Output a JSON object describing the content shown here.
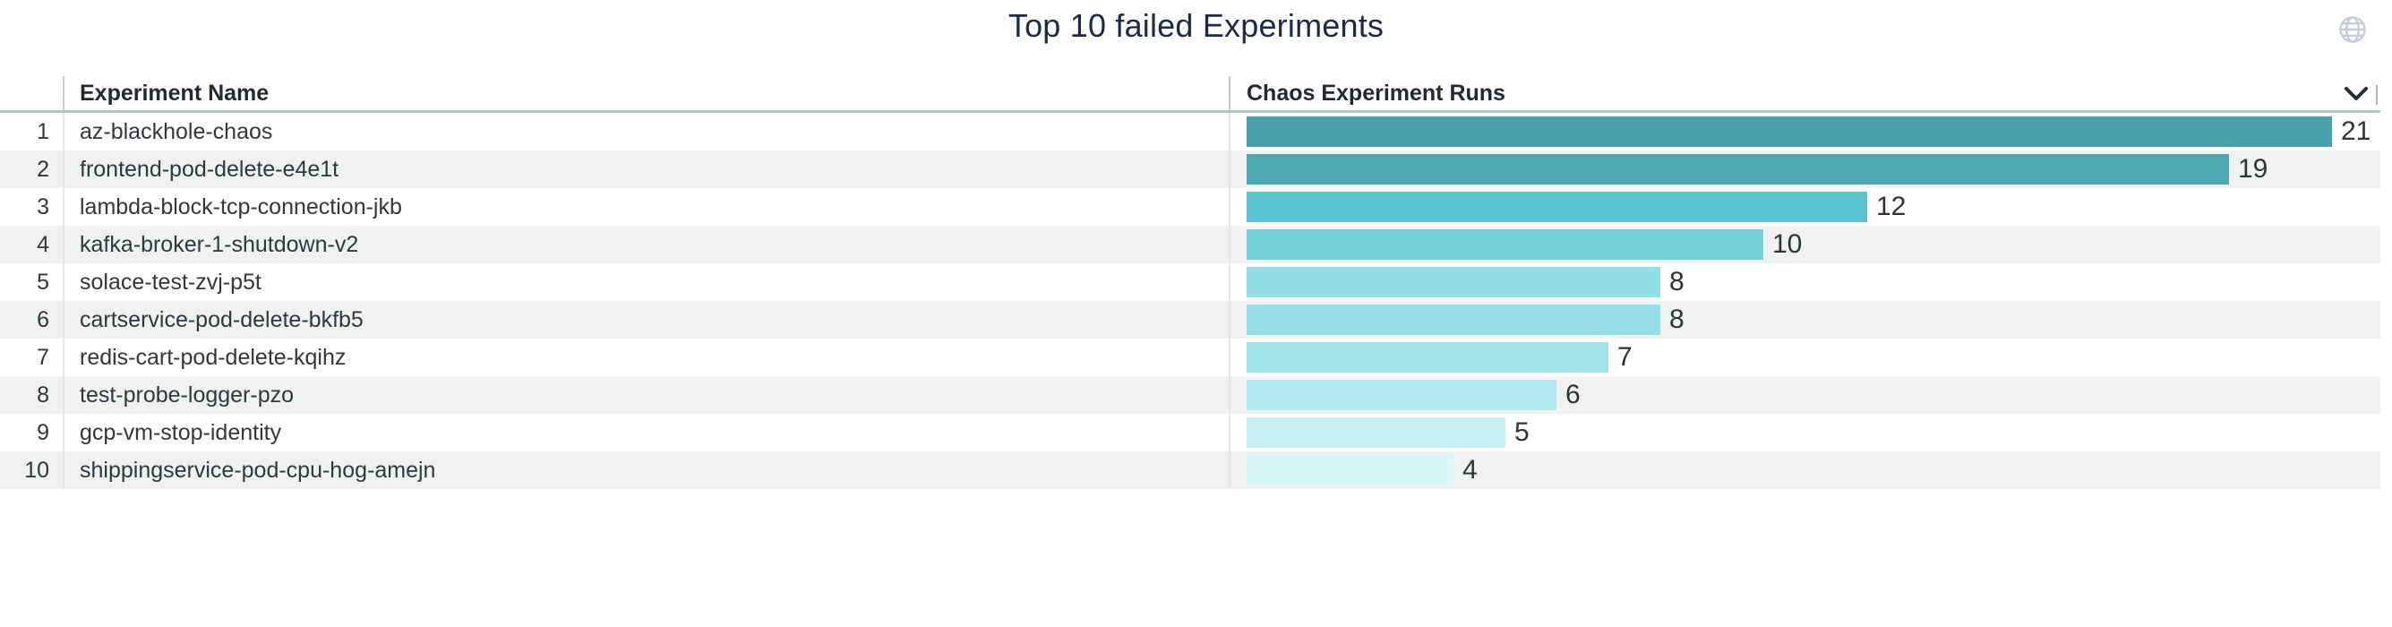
{
  "panel": {
    "title": "Top 10 failed Experiments",
    "icons": {
      "globe": "globe-icon",
      "header_chevron": "chevron-down-icon"
    }
  },
  "table": {
    "columns": [
      {
        "label": "Experiment Name"
      },
      {
        "label": "Chaos Experiment Runs"
      }
    ],
    "rows": [
      {
        "rank": "1",
        "name": "az-blackhole-chaos",
        "value": 21,
        "color": "#48a0aa"
      },
      {
        "rank": "2",
        "name": "frontend-pod-delete-e4e1t",
        "value": 19,
        "color": "#4da8b1"
      },
      {
        "rank": "3",
        "name": "lambda-block-tcp-connection-jkb",
        "value": 12,
        "color": "#5bc5d1"
      },
      {
        "rank": "4",
        "name": "kafka-broker-1-shutdown-v2",
        "value": 10,
        "color": "#74d0d9"
      },
      {
        "rank": "5",
        "name": "solace-test-zvj-p5t",
        "value": 8,
        "color": "#91dee5"
      },
      {
        "rank": "6",
        "name": "cartservice-pod-delete-bkfb5",
        "value": 8,
        "color": "#94dfe6"
      },
      {
        "rank": "7",
        "name": "redis-cart-pod-delete-kqihz",
        "value": 7,
        "color": "#a0e4ea"
      },
      {
        "rank": "8",
        "name": "test-probe-logger-pzo",
        "value": 6,
        "color": "#b2ebef"
      },
      {
        "rank": "9",
        "name": "gcp-vm-stop-identity",
        "value": 5,
        "color": "#c5f1f4"
      },
      {
        "rank": "10",
        "name": "shippingservice-pod-cpu-hog-amejn",
        "value": 4,
        "color": "#d8f7f9"
      }
    ]
  },
  "chart_data": {
    "type": "bar",
    "orientation": "horizontal",
    "title": "Top 10 failed Experiments",
    "xlabel": "Chaos Experiment Runs",
    "ylabel": "Experiment Name",
    "categories": [
      "az-blackhole-chaos",
      "frontend-pod-delete-e4e1t",
      "lambda-block-tcp-connection-jkb",
      "kafka-broker-1-shutdown-v2",
      "solace-test-zvj-p5t",
      "cartservice-pod-delete-bkfb5",
      "redis-cart-pod-delete-kqihz",
      "test-probe-logger-pzo",
      "gcp-vm-stop-identity",
      "shippingservice-pod-cpu-hog-amejn"
    ],
    "values": [
      21,
      19,
      12,
      10,
      8,
      8,
      7,
      6,
      5,
      4
    ],
    "xlim": [
      0,
      21
    ],
    "grid": false,
    "legend_position": "none",
    "value_labels_shown": true,
    "bar_colors": [
      "#48a0aa",
      "#4da8b1",
      "#5bc5d1",
      "#74d0d9",
      "#91dee5",
      "#94dfe6",
      "#a0e4ea",
      "#b2ebef",
      "#c5f1f4",
      "#d8f7f9"
    ]
  },
  "colors": {
    "title_text": "#1d2a45",
    "header_text": "#24292f",
    "body_text": "#32373c",
    "value_text": "#2e3338",
    "stripe_row": "#f0f1f1",
    "header_border": "#b9c0c6",
    "column_separator": "#e3e6e8",
    "globe_icon": "#c6cdd8",
    "chevron_icon": "#272d34"
  }
}
